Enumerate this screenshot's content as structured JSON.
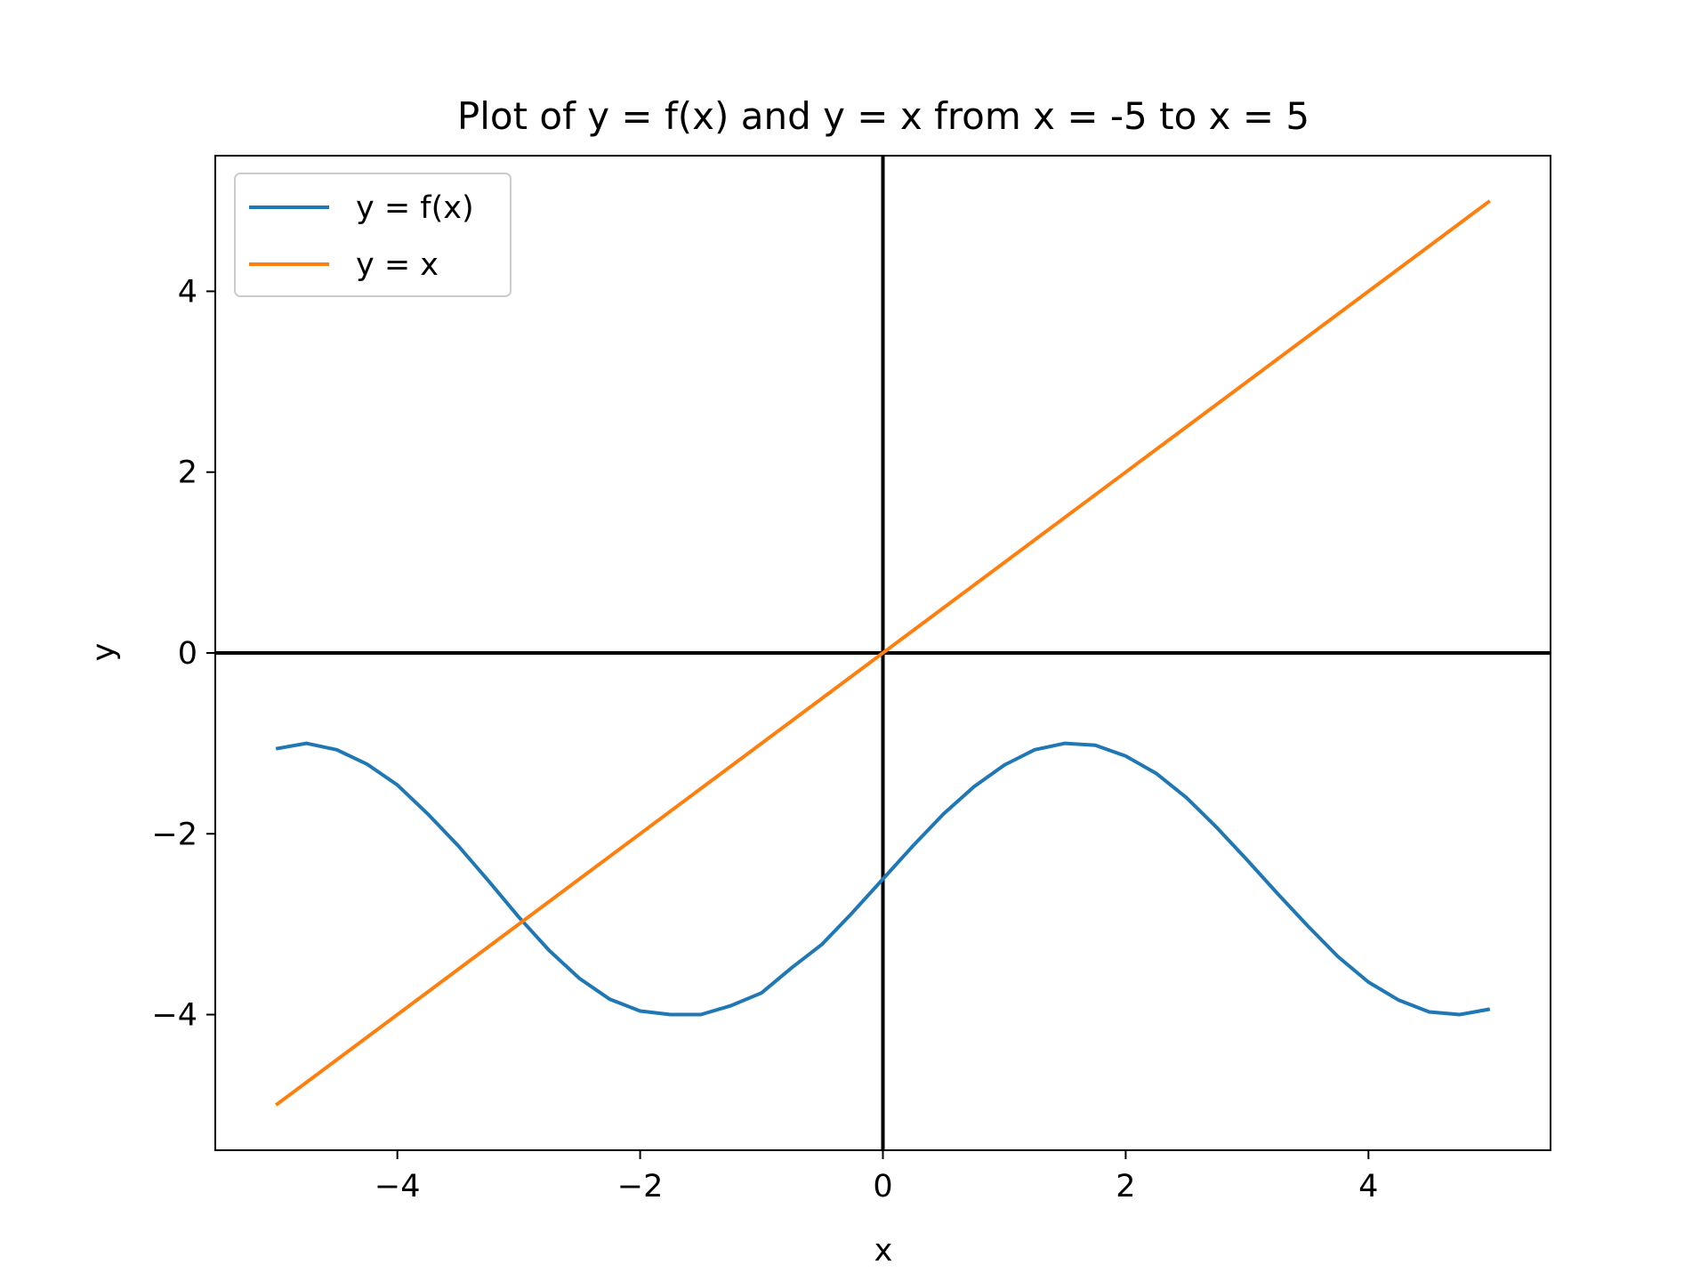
{
  "chart_data": {
    "type": "line",
    "title": "Plot of y = f(x) and y = x from x = -5 to x = 5",
    "xlabel": "x",
    "ylabel": "y",
    "xlim": [
      -5.5,
      5.5
    ],
    "ylim": [
      -5.5,
      5.5
    ],
    "xticks": [
      -4,
      -2,
      0,
      2,
      4
    ],
    "yticks": [
      -4,
      -2,
      0,
      2,
      4
    ],
    "xtick_labels": [
      "−4",
      "−2",
      "0",
      "2",
      "4"
    ],
    "ytick_labels": [
      "−4",
      "−2",
      "0",
      "2",
      "4"
    ],
    "grid": false,
    "zero_lines": true,
    "legend_position": "top-left",
    "series": [
      {
        "name": "y = f(x)",
        "color": "#1f77b4",
        "x": [
          -5,
          -4.75,
          -4.5,
          -4.25,
          -4,
          -3.75,
          -3.5,
          -3.25,
          -3,
          -2.75,
          -2.5,
          -2.25,
          -2,
          -1.75,
          -1.5,
          -1.25,
          -1,
          -0.75,
          -0.5,
          -0.25,
          0,
          0.25,
          0.5,
          0.75,
          1,
          1.25,
          1.5,
          1.75,
          2,
          2.25,
          2.5,
          2.75,
          3,
          3.25,
          3.5,
          3.75,
          4,
          4.25,
          4.5,
          4.75,
          5
        ],
        "y": [
          -1.06,
          -1.0,
          -1.07,
          -1.23,
          -1.46,
          -1.78,
          -2.13,
          -2.52,
          -2.92,
          -3.29,
          -3.6,
          -3.83,
          -3.96,
          -4.0,
          -4.0,
          -3.9,
          -3.76,
          -3.48,
          -3.22,
          -2.87,
          -2.5,
          -2.13,
          -1.78,
          -1.48,
          -1.24,
          -1.07,
          -1.0,
          -1.02,
          -1.14,
          -1.33,
          -1.6,
          -1.93,
          -2.29,
          -2.66,
          -3.02,
          -3.36,
          -3.64,
          -3.84,
          -3.97,
          -4.0,
          -3.94
        ]
      },
      {
        "name": "y = x",
        "color": "#ff7f0e",
        "x": [
          -5,
          5
        ],
        "y": [
          -5,
          5
        ]
      }
    ]
  }
}
